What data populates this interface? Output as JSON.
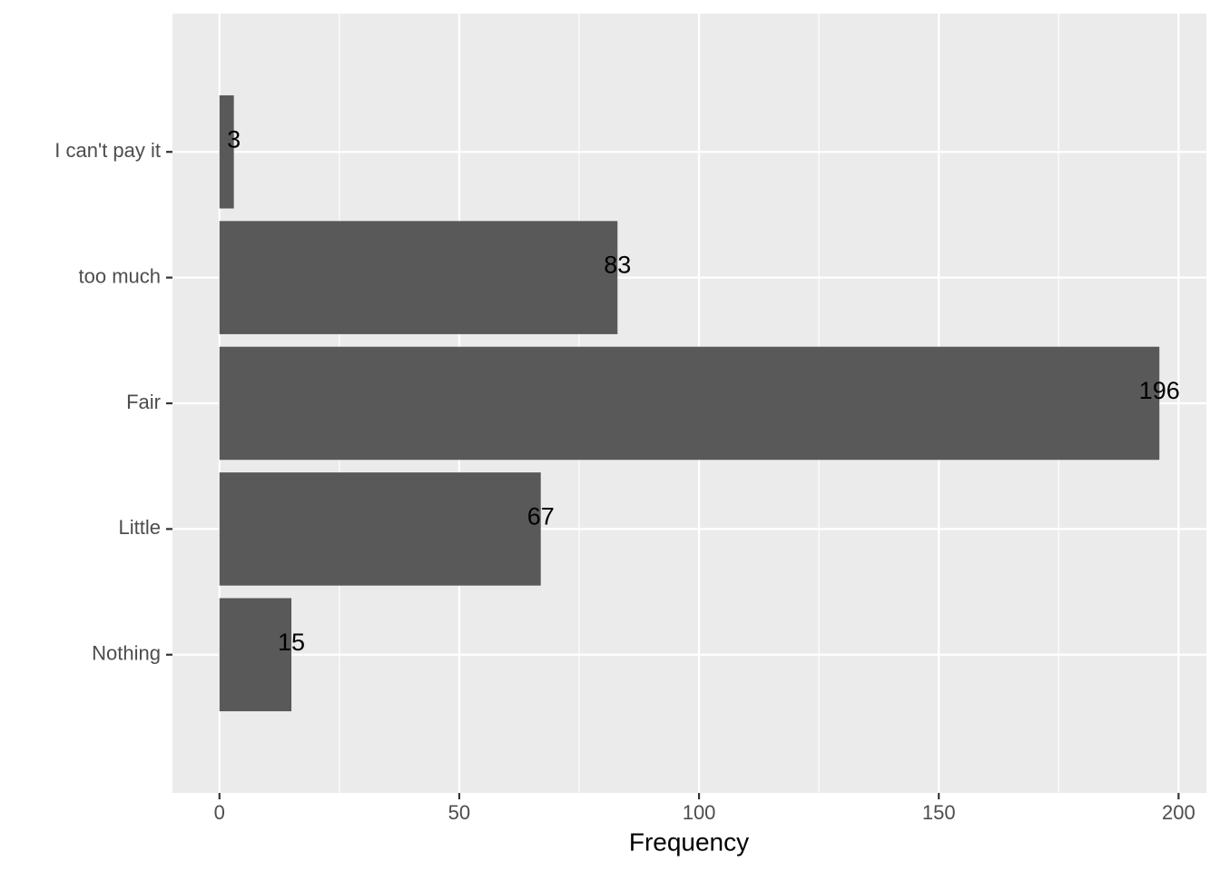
{
  "chart_data": {
    "type": "hbar",
    "x_label": "Frequency",
    "categories": [
      "I can't pay it",
      "too much",
      "Fair",
      "Little",
      "Nothing"
    ],
    "values": [
      3,
      83,
      196,
      67,
      15
    ],
    "color": "#595959",
    "xlim": [
      -9.8,
      205.8
    ],
    "xticks": [
      0,
      50,
      100,
      150,
      200
    ],
    "minor_xticks": [
      25,
      75,
      125,
      175
    ],
    "grid": true
  }
}
